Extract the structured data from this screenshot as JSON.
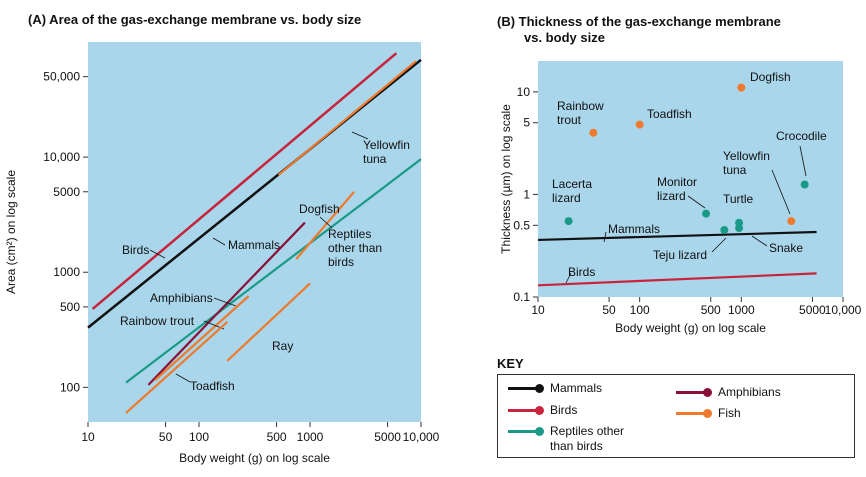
{
  "titles": {
    "a_line1": "(A)  Area of the gas-exchange membrane vs. body size",
    "b_line1": "(B)  Thickness of the gas-exchange membrane",
    "b_line2": "vs. body size"
  },
  "colors": {
    "Mammals": "#111111",
    "Birds": "#c8243c",
    "Reptiles": "#1a9a86",
    "Amphibians": "#8a1038",
    "Fish": "#ee7a2e",
    "plot_bg": "#a9d6ea"
  },
  "key": {
    "title": "KEY",
    "items": [
      {
        "label": "Mammals",
        "color": "#111111"
      },
      {
        "label": "Birds",
        "color": "#c8243c"
      },
      {
        "label": "Reptiles other than birds",
        "color": "#1a9a86"
      },
      {
        "label": "Amphibians",
        "color": "#8a1038"
      },
      {
        "label": "Fish",
        "color": "#ee7a2e"
      }
    ]
  },
  "chart_data": [
    {
      "type": "line",
      "xlabel": "Body weight (g) on log scale",
      "ylabel": "Area (cm²) on log scale",
      "xscale": "log",
      "yscale": "log",
      "xlim": [
        10,
        10000
      ],
      "ylim": [
        50,
        100000
      ],
      "xticks": [
        10,
        50,
        100,
        500,
        1000,
        5000,
        10000
      ],
      "xtick_labels": [
        "10",
        "50",
        "100",
        "500",
        "1000",
        "5000",
        "10,000"
      ],
      "yticks": [
        100,
        500,
        1000,
        5000,
        10000,
        50000
      ],
      "ytick_labels": [
        "100",
        "500",
        "1000",
        "5000",
        "10,000",
        "50,000"
      ],
      "grid": false,
      "series": [
        {
          "name": "Birds",
          "group": "Birds",
          "label": "Birds",
          "x": [
            11,
            6000
          ],
          "y": [
            480,
            80000
          ]
        },
        {
          "name": "Mammals",
          "group": "Mammals",
          "label": "Mammals",
          "x": [
            10,
            10000
          ],
          "y": [
            330,
            70000
          ]
        },
        {
          "name": "Yellowfin tuna",
          "group": "Fish",
          "label": "Yellowfin\ntuna",
          "x": [
            520,
            9000
          ],
          "y": [
            7000,
            68000
          ]
        },
        {
          "name": "Reptiles other than birds",
          "group": "Reptiles",
          "label": "Reptiles\nother than\nbirds",
          "x": [
            22,
            10000
          ],
          "y": [
            110,
            9600
          ]
        },
        {
          "name": "Amphibians",
          "group": "Amphibians",
          "label": "Amphibians",
          "x": [
            35,
            900
          ],
          "y": [
            105,
            2700
          ]
        },
        {
          "name": "Dogfish",
          "group": "Fish",
          "label": "Dogfish",
          "x": [
            750,
            2500
          ],
          "y": [
            1300,
            5000
          ]
        },
        {
          "name": "Rainbow trout",
          "group": "Fish",
          "label": "Rainbow trout",
          "x": [
            40,
            280
          ],
          "y": [
            115,
            620
          ]
        },
        {
          "name": "Toadfish",
          "group": "Fish",
          "label": "Toadfish",
          "x": [
            22,
            180
          ],
          "y": [
            60,
            370
          ]
        },
        {
          "name": "Ray",
          "group": "Fish",
          "label": "Ray",
          "x": [
            180,
            1000
          ],
          "y": [
            170,
            800
          ]
        }
      ]
    },
    {
      "type": "scatter",
      "xlabel": "Body weight (g) on log scale",
      "ylabel": "Thickness (µm) on log scale",
      "xscale": "log",
      "yscale": "log",
      "xlim": [
        10,
        10000
      ],
      "ylim": [
        0.1,
        20
      ],
      "xticks": [
        10,
        50,
        100,
        500,
        1000,
        5000,
        10000
      ],
      "xtick_labels": [
        "10",
        "50",
        "100",
        "500",
        "1000",
        "5000",
        "10,000"
      ],
      "yticks": [
        0.1,
        0.5,
        1,
        5,
        10
      ],
      "ytick_labels": [
        "0.1",
        "0.5",
        "1",
        "5",
        "10"
      ],
      "grid": false,
      "lines": [
        {
          "name": "Mammals",
          "group": "Mammals",
          "label": "Mammals",
          "x": [
            10,
            5500
          ],
          "y": [
            0.36,
            0.43
          ]
        },
        {
          "name": "Birds",
          "group": "Birds",
          "label": "Birds",
          "x": [
            10,
            5500
          ],
          "y": [
            0.13,
            0.17
          ]
        }
      ],
      "points": [
        {
          "name": "Dogfish",
          "group": "Fish",
          "label": "Dogfish",
          "x": 1000,
          "y": 11
        },
        {
          "name": "Rainbow trout",
          "group": "Fish",
          "label": "Rainbow\ntrout",
          "x": 35,
          "y": 4
        },
        {
          "name": "Toadfish",
          "group": "Fish",
          "label": "Toadfish",
          "x": 100,
          "y": 4.8
        },
        {
          "name": "Yellowfin tuna",
          "group": "Fish",
          "label": "Yellowfin\ntuna",
          "x": 3100,
          "y": 0.55
        },
        {
          "name": "Crocodile",
          "group": "Reptiles",
          "label": "Crocodile",
          "x": 4200,
          "y": 1.25
        },
        {
          "name": "Lacerta lizard",
          "group": "Reptiles",
          "label": "Lacerta\nlizard",
          "x": 20,
          "y": 0.55
        },
        {
          "name": "Monitor lizard",
          "group": "Reptiles",
          "label": "Monitor\nlizard",
          "x": 450,
          "y": 0.65
        },
        {
          "name": "Turtle",
          "group": "Reptiles",
          "label": "Turtle",
          "x": 950,
          "y": 0.53
        },
        {
          "name": "Teju lizard",
          "group": "Reptiles",
          "label": "Teju lizard",
          "x": 680,
          "y": 0.45
        },
        {
          "name": "Snake",
          "group": "Reptiles",
          "label": "Snake",
          "x": 950,
          "y": 0.47
        }
      ]
    }
  ]
}
